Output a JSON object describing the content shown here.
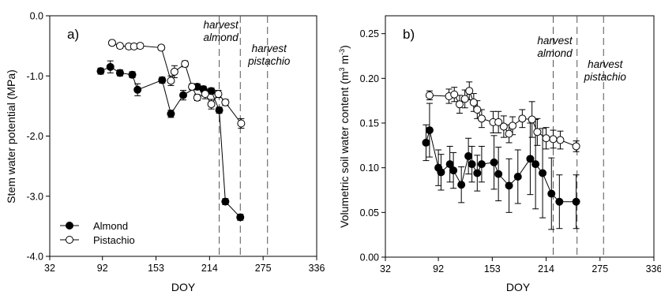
{
  "chart_data": [
    {
      "type": "scatter",
      "panel_label": "a)",
      "xlabel": "DOY",
      "ylabel": "Stem water potential (MPa)",
      "xlim": [
        32,
        336
      ],
      "ylim": [
        -4.0,
        0.0
      ],
      "x_ticks": [
        "32",
        "92",
        "153",
        "214",
        "275",
        "336"
      ],
      "y_ticks": [
        "0.0",
        "-1.0",
        "-2.0",
        "-3.0",
        "-4.0"
      ],
      "legend": {
        "placement": "bottom-left",
        "entries": [
          "Almond",
          "Pistachio"
        ]
      },
      "series": [
        {
          "name": "Almond",
          "marker": "filled-circle",
          "points": [
            {
              "x": 90,
              "y": -0.92,
              "err": 0.05
            },
            {
              "x": 101,
              "y": -0.85,
              "err": 0.1
            },
            {
              "x": 112,
              "y": -0.95,
              "err": 0.05
            },
            {
              "x": 126,
              "y": -0.98,
              "err": 0.05
            },
            {
              "x": 132,
              "y": -1.23,
              "err": 0.1
            },
            {
              "x": 160,
              "y": -1.07,
              "err": 0.05
            },
            {
              "x": 170,
              "y": -1.63,
              "err": 0.06
            },
            {
              "x": 184,
              "y": -1.32,
              "err": 0.08
            },
            {
              "x": 200,
              "y": -1.18,
              "err": 0.05
            },
            {
              "x": 207,
              "y": -1.22,
              "err": 0.05
            },
            {
              "x": 216,
              "y": -1.25,
              "err": 0.05
            },
            {
              "x": 225,
              "y": -1.57,
              "err": 0.05
            },
            {
              "x": 232,
              "y": -3.09,
              "err": 0.05
            },
            {
              "x": 249,
              "y": -3.35,
              "err": 0.05
            }
          ]
        },
        {
          "name": "Pistachio",
          "marker": "open-circle",
          "points": [
            {
              "x": 103,
              "y": -0.45,
              "err": 0.04
            },
            {
              "x": 112,
              "y": -0.5,
              "err": 0.04
            },
            {
              "x": 122,
              "y": -0.51,
              "err": 0.04
            },
            {
              "x": 128,
              "y": -0.51,
              "err": 0.04
            },
            {
              "x": 135,
              "y": -0.5,
              "err": 0.04
            },
            {
              "x": 159,
              "y": -0.53,
              "err": 0.04
            },
            {
              "x": 170,
              "y": -1.08,
              "err": 0.08
            },
            {
              "x": 174,
              "y": -0.93,
              "err": 0.1
            },
            {
              "x": 186,
              "y": -0.8,
              "err": 0.05
            },
            {
              "x": 194,
              "y": -1.18,
              "err": 0.05
            },
            {
              "x": 200,
              "y": -1.36,
              "err": 0.05
            },
            {
              "x": 209,
              "y": -1.3,
              "err": 0.08
            },
            {
              "x": 216,
              "y": -1.47,
              "err": 0.08
            },
            {
              "x": 224,
              "y": -1.3,
              "err": 0.06
            },
            {
              "x": 232,
              "y": -1.44,
              "err": 0.05
            },
            {
              "x": 250,
              "y": -1.79,
              "err": 0.08
            }
          ]
        }
      ],
      "harvest_lines": [
        {
          "x": 225,
          "label_line1": "harvest",
          "label_line2": "almond"
        },
        {
          "x": 249,
          "label_line1": "",
          "label_line2": ""
        },
        {
          "x": 280,
          "label_line1": "harvest",
          "label_line2": "pistachio"
        }
      ]
    },
    {
      "type": "scatter",
      "panel_label": "b)",
      "xlabel": "DOY",
      "ylabel": "Volumetric soil water content (m",
      "ylabel_sup1": "3",
      "ylabel_mid": " m",
      "ylabel_sup2": "-3",
      "ylabel_end": ")",
      "xlim": [
        32,
        336
      ],
      "ylim": [
        0.0,
        0.27
      ],
      "x_ticks": [
        "32",
        "92",
        "153",
        "214",
        "275",
        "336"
      ],
      "y_ticks": [
        "0.00",
        "0.05",
        "0.10",
        "0.15",
        "0.20",
        "0.25"
      ],
      "series": [
        {
          "name": "Almond",
          "marker": "filled-circle",
          "points": [
            {
              "x": 78,
              "y": 0.128,
              "err": 0.02
            },
            {
              "x": 82,
              "y": 0.142,
              "err": 0.03
            },
            {
              "x": 92,
              "y": 0.1,
              "err": 0.02
            },
            {
              "x": 95,
              "y": 0.095,
              "err": 0.02
            },
            {
              "x": 105,
              "y": 0.104,
              "err": 0.02
            },
            {
              "x": 109,
              "y": 0.097,
              "err": 0.02
            },
            {
              "x": 118,
              "y": 0.081,
              "err": 0.02
            },
            {
              "x": 126,
              "y": 0.113,
              "err": 0.02
            },
            {
              "x": 130,
              "y": 0.104,
              "err": 0.02
            },
            {
              "x": 136,
              "y": 0.094,
              "err": 0.02
            },
            {
              "x": 141,
              "y": 0.104,
              "err": 0.02
            },
            {
              "x": 155,
              "y": 0.106,
              "err": 0.03
            },
            {
              "x": 160,
              "y": 0.093,
              "err": 0.03
            },
            {
              "x": 172,
              "y": 0.08,
              "err": 0.03
            },
            {
              "x": 182,
              "y": 0.09,
              "err": 0.03
            },
            {
              "x": 196,
              "y": 0.11,
              "err": 0.04
            },
            {
              "x": 202,
              "y": 0.104,
              "err": 0.05
            },
            {
              "x": 210,
              "y": 0.094,
              "err": 0.05
            },
            {
              "x": 220,
              "y": 0.071,
              "err": 0.04
            },
            {
              "x": 229,
              "y": 0.062,
              "err": 0.03
            },
            {
              "x": 248,
              "y": 0.062,
              "err": 0.03
            }
          ]
        },
        {
          "name": "Pistachio",
          "marker": "open-circle",
          "points": [
            {
              "x": 82,
              "y": 0.181,
              "err": 0.005
            },
            {
              "x": 104,
              "y": 0.18,
              "err": 0.008
            },
            {
              "x": 110,
              "y": 0.182,
              "err": 0.008
            },
            {
              "x": 116,
              "y": 0.171,
              "err": 0.01
            },
            {
              "x": 122,
              "y": 0.177,
              "err": 0.01
            },
            {
              "x": 127,
              "y": 0.186,
              "err": 0.01
            },
            {
              "x": 132,
              "y": 0.173,
              "err": 0.01
            },
            {
              "x": 136,
              "y": 0.165,
              "err": 0.01
            },
            {
              "x": 141,
              "y": 0.155,
              "err": 0.01
            },
            {
              "x": 154,
              "y": 0.151,
              "err": 0.012
            },
            {
              "x": 160,
              "y": 0.151,
              "err": 0.012
            },
            {
              "x": 166,
              "y": 0.146,
              "err": 0.012
            },
            {
              "x": 172,
              "y": 0.138,
              "err": 0.01
            },
            {
              "x": 176,
              "y": 0.147,
              "err": 0.01
            },
            {
              "x": 187,
              "y": 0.155,
              "err": 0.01
            },
            {
              "x": 198,
              "y": 0.154,
              "err": 0.02
            },
            {
              "x": 204,
              "y": 0.14,
              "err": 0.015
            },
            {
              "x": 214,
              "y": 0.133,
              "err": 0.012
            },
            {
              "x": 222,
              "y": 0.132,
              "err": 0.01
            },
            {
              "x": 230,
              "y": 0.131,
              "err": 0.01
            },
            {
              "x": 248,
              "y": 0.124,
              "err": 0.006
            }
          ]
        }
      ],
      "harvest_lines": [
        {
          "x": 222,
          "label_line1": "harvest",
          "label_line2": "almond"
        },
        {
          "x": 249,
          "label_line1": "",
          "label_line2": ""
        },
        {
          "x": 279,
          "label_line1": "harvest",
          "label_line2": "pistachio"
        }
      ]
    }
  ]
}
